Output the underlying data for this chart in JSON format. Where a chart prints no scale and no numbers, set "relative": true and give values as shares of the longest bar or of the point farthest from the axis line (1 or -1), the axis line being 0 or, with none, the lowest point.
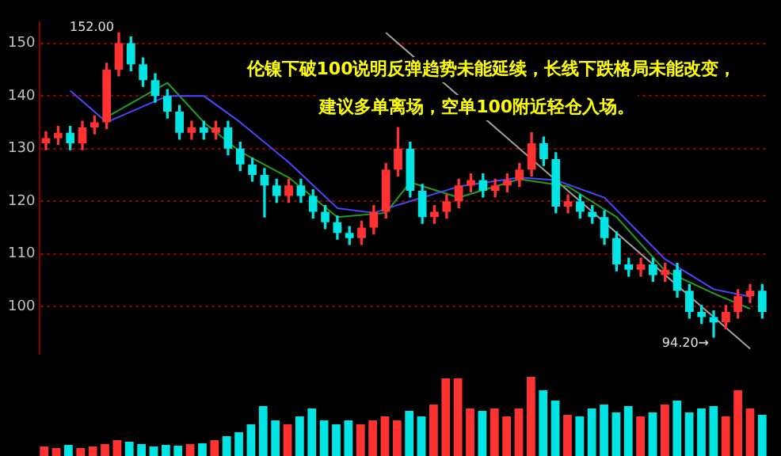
{
  "chart_data": [
    {
      "type": "candlestick",
      "tick_labels": "y",
      "grid": "y",
      "ylim": [
        91,
        154
      ],
      "yticks": [
        100,
        110,
        120,
        130,
        140,
        150
      ],
      "categories": [
        null,
        null,
        null,
        null,
        null,
        null,
        null,
        null,
        null,
        null,
        null,
        null,
        null,
        null,
        null,
        null,
        null,
        null,
        null,
        null,
        null,
        null,
        null,
        null,
        null,
        null,
        null,
        null,
        null,
        null,
        null,
        null,
        null,
        null,
        null,
        null,
        null,
        null,
        null,
        null,
        null,
        null,
        null,
        null,
        null,
        null,
        null,
        null,
        null,
        null,
        null,
        null,
        null,
        null,
        null,
        null,
        null,
        null,
        null,
        null
      ],
      "ohlc": [
        [
          131,
          133.2,
          129.8,
          132
        ],
        [
          132,
          134.2,
          130.8,
          133
        ],
        [
          133,
          134.2,
          129.8,
          131
        ],
        [
          131,
          135.2,
          129.8,
          134
        ],
        [
          134,
          136.2,
          132.8,
          135
        ],
        [
          135,
          146.2,
          133.8,
          145
        ],
        [
          145,
          152,
          143.8,
          150
        ],
        [
          150,
          151.2,
          144.8,
          146
        ],
        [
          146,
          147.2,
          141.8,
          143
        ],
        [
          143,
          144.2,
          138.8,
          140
        ],
        [
          140,
          141.2,
          135.8,
          137
        ],
        [
          137,
          138.2,
          131.8,
          133
        ],
        [
          133,
          135.2,
          131.8,
          134
        ],
        [
          134,
          135.2,
          131.8,
          133
        ],
        [
          133,
          135.2,
          131.8,
          134
        ],
        [
          134,
          135.2,
          128.8,
          130
        ],
        [
          130,
          131.2,
          125.8,
          127
        ],
        [
          127,
          128.2,
          123.8,
          125
        ],
        [
          125,
          126.2,
          117,
          123
        ],
        [
          123,
          124.2,
          119.8,
          121
        ],
        [
          121,
          124.2,
          119.8,
          123
        ],
        [
          123,
          124.2,
          119.8,
          121
        ],
        [
          121,
          122.2,
          116.8,
          118
        ],
        [
          118,
          119.2,
          114.8,
          116
        ],
        [
          116,
          117.2,
          112.8,
          114
        ],
        [
          114,
          115.2,
          111.8,
          113
        ],
        [
          113,
          116.2,
          111.8,
          115
        ],
        [
          115,
          119.2,
          113.8,
          118
        ],
        [
          118,
          127.2,
          116.8,
          126
        ],
        [
          126,
          134,
          124.8,
          130
        ],
        [
          130,
          131.2,
          120.8,
          122
        ],
        [
          122,
          123.2,
          115.8,
          117
        ],
        [
          117,
          119.2,
          115.8,
          118
        ],
        [
          118,
          121.2,
          116.8,
          120
        ],
        [
          120,
          124.2,
          118.8,
          123
        ],
        [
          123,
          125.2,
          121.8,
          124
        ],
        [
          124,
          125.2,
          120.8,
          122
        ],
        [
          122,
          124.2,
          120.8,
          123
        ],
        [
          123,
          125.2,
          121.8,
          124
        ],
        [
          124,
          127.2,
          122.8,
          126
        ],
        [
          126,
          133,
          124.8,
          131
        ],
        [
          131,
          132.2,
          126.8,
          128
        ],
        [
          128,
          129.2,
          117.8,
          119
        ],
        [
          119,
          121.2,
          117.8,
          120
        ],
        [
          120,
          121.2,
          116.8,
          118
        ],
        [
          118,
          119.2,
          115.8,
          117
        ],
        [
          117,
          118.2,
          111.8,
          113
        ],
        [
          113,
          114.2,
          106.8,
          108
        ],
        [
          108,
          109.2,
          105.8,
          107
        ],
        [
          107,
          109.2,
          105.8,
          108
        ],
        [
          108,
          109.2,
          104.8,
          106
        ],
        [
          106,
          108.2,
          104.8,
          107
        ],
        [
          107,
          108.2,
          101.8,
          103
        ],
        [
          103,
          104.2,
          97.8,
          99
        ],
        [
          99,
          100.2,
          96.8,
          98
        ],
        [
          98,
          99.2,
          94.2,
          97
        ],
        [
          97,
          100.2,
          95.8,
          99
        ],
        [
          99,
          103.2,
          97.8,
          102
        ],
        [
          102,
          104.2,
          100.8,
          103
        ],
        [
          103,
          104.2,
          97.8,
          99
        ]
      ],
      "series": [
        {
          "type": "line",
          "color": "#4848ff",
          "values": [
            null,
            null,
            141,
            null,
            null,
            135,
            null,
            null,
            null,
            null,
            140,
            null,
            null,
            140,
            null,
            null,
            135,
            null,
            null,
            null,
            127.4,
            null,
            null,
            null,
            118.7,
            null,
            null,
            117.8,
            null,
            119.3,
            null,
            null,
            null,
            null,
            122.8,
            null,
            null,
            null,
            null,
            124.5,
            null,
            null,
            124,
            null,
            null,
            null,
            120.7,
            null,
            null,
            null,
            null,
            109,
            null,
            null,
            null,
            103.3,
            null,
            null,
            101.9,
            null
          ]
        },
        {
          "type": "line",
          "color": "#20a020",
          "values": [
            null,
            null,
            null,
            null,
            null,
            136,
            null,
            null,
            null,
            null,
            142.5,
            null,
            null,
            135,
            null,
            null,
            129.4,
            null,
            null,
            null,
            124.5,
            null,
            null,
            null,
            117,
            null,
            null,
            null,
            117.8,
            null,
            123.6,
            null,
            null,
            null,
            120.7,
            null,
            null,
            null,
            null,
            124.2,
            null,
            null,
            null,
            122.8,
            null,
            null,
            null,
            117,
            null,
            null,
            null,
            106.8,
            null,
            null,
            null,
            102.5,
            null,
            null,
            99.6,
            null
          ]
        },
        {
          "type": "line",
          "color": "#a0a0a0",
          "values": [
            null,
            null,
            null,
            null,
            null,
            null,
            null,
            null,
            null,
            null,
            null,
            null,
            null,
            null,
            null,
            null,
            null,
            null,
            null,
            null,
            null,
            null,
            null,
            null,
            null,
            null,
            null,
            null,
            152,
            null,
            null,
            null,
            null,
            null,
            null,
            null,
            null,
            null,
            null,
            null,
            null,
            null,
            null,
            null,
            null,
            null,
            null,
            null,
            null,
            null,
            null,
            null,
            null,
            null,
            null,
            null,
            null,
            null,
            92,
            null
          ]
        }
      ],
      "annotations": [
        "伦镍下破100说明反弹趋势未能延续，长线下跌格局未能改变，",
        "建议多单离场，空单100附近轻仓入场。",
        "152.00",
        "94.20→"
      ]
    },
    {
      "type": "bar",
      "relative": true,
      "categories": [
        null,
        null,
        null,
        null,
        null,
        null,
        null,
        null,
        null,
        null,
        null,
        null,
        null,
        null,
        null,
        null,
        null,
        null,
        null,
        null,
        null,
        null,
        null,
        null,
        null,
        null,
        null,
        null,
        null,
        null,
        null,
        null,
        null,
        null,
        null,
        null,
        null,
        null,
        null,
        null,
        null,
        null,
        null,
        null,
        null,
        null,
        null,
        null,
        null,
        null,
        null,
        null,
        null,
        null,
        null,
        null,
        null,
        null,
        null,
        null
      ],
      "values": [
        0.12,
        0.1,
        0.14,
        0.1,
        0.12,
        0.15,
        0.2,
        0.18,
        0.15,
        0.12,
        0.14,
        0.13,
        0.15,
        0.16,
        0.2,
        0.25,
        0.3,
        0.4,
        0.63,
        0.45,
        0.4,
        0.5,
        0.6,
        0.45,
        0.4,
        0.45,
        0.4,
        0.45,
        0.5,
        0.45,
        0.57,
        0.5,
        0.65,
        0.98,
        0.98,
        0.6,
        0.57,
        0.6,
        0.5,
        0.6,
        1,
        0.83,
        0.7,
        0.52,
        0.5,
        0.6,
        0.65,
        0.55,
        0.63,
        0.5,
        0.55,
        0.65,
        0.7,
        0.55,
        0.6,
        0.63,
        0.5,
        0.83,
        0.6,
        0.52
      ],
      "colors": [
        "#ff3232",
        "#ff3232",
        "#00e4e4",
        "#ff3232",
        "#ff3232",
        "#ff3232",
        "#ff3232",
        "#00e4e4",
        "#00e4e4",
        "#00e4e4",
        "#00e4e4",
        "#00e4e4",
        "#ff3232",
        "#00e4e4",
        "#ff3232",
        "#00e4e4",
        "#00e4e4",
        "#00e4e4",
        "#00e4e4",
        "#00e4e4",
        "#ff3232",
        "#00e4e4",
        "#00e4e4",
        "#00e4e4",
        "#00e4e4",
        "#00e4e4",
        "#ff3232",
        "#ff3232",
        "#ff3232",
        "#ff3232",
        "#00e4e4",
        "#00e4e4",
        "#ff3232",
        "#ff3232",
        "#ff3232",
        "#ff3232",
        "#00e4e4",
        "#ff3232",
        "#ff3232",
        "#ff3232",
        "#ff3232",
        "#00e4e4",
        "#00e4e4",
        "#ff3232",
        "#00e4e4",
        "#00e4e4",
        "#00e4e4",
        "#00e4e4",
        "#00e4e4",
        "#ff3232",
        "#00e4e4",
        "#ff3232",
        "#00e4e4",
        "#00e4e4",
        "#00e4e4",
        "#00e4e4",
        "#ff3232",
        "#ff3232",
        "#ff3232",
        "#00e4e4"
      ]
    }
  ]
}
